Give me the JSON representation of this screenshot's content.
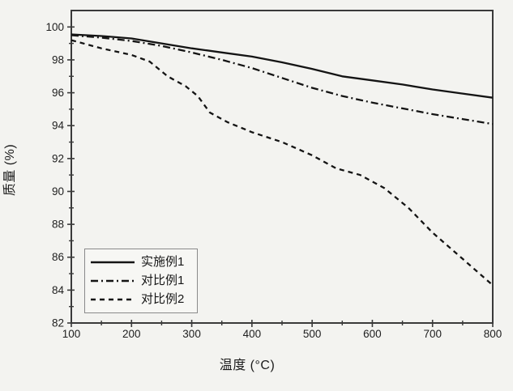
{
  "figure": {
    "background": "#f3f3f0",
    "line_color": "#141414",
    "frame_color": "#3a3a3a",
    "tick_label_color": "#1e1e1e"
  },
  "chart_data": {
    "type": "line",
    "title": "",
    "xlabel": "温度 (°C)",
    "ylabel": "质量 (%)",
    "xlim": [
      100,
      800
    ],
    "ylim": [
      82,
      101
    ],
    "x_ticks": [
      100,
      200,
      300,
      400,
      500,
      600,
      700,
      800
    ],
    "y_ticks": [
      82,
      84,
      86,
      88,
      90,
      92,
      94,
      96,
      98,
      100
    ],
    "grid": false,
    "legend_position": "lower-left",
    "series": [
      {
        "name": "实施例1",
        "line_style": "solid",
        "points": [
          [
            100,
            99.55
          ],
          [
            150,
            99.45
          ],
          [
            200,
            99.3
          ],
          [
            250,
            99.0
          ],
          [
            300,
            98.7
          ],
          [
            350,
            98.45
          ],
          [
            400,
            98.2
          ],
          [
            450,
            97.85
          ],
          [
            500,
            97.45
          ],
          [
            550,
            97.0
          ],
          [
            600,
            96.75
          ],
          [
            650,
            96.5
          ],
          [
            700,
            96.2
          ],
          [
            750,
            95.95
          ],
          [
            800,
            95.7
          ]
        ]
      },
      {
        "name": "对比例1",
        "line_style": "dash-dot",
        "points": [
          [
            100,
            99.5
          ],
          [
            150,
            99.35
          ],
          [
            200,
            99.15
          ],
          [
            250,
            98.85
          ],
          [
            300,
            98.45
          ],
          [
            350,
            98.0
          ],
          [
            400,
            97.5
          ],
          [
            450,
            96.9
          ],
          [
            500,
            96.3
          ],
          [
            550,
            95.8
          ],
          [
            600,
            95.4
          ],
          [
            650,
            95.05
          ],
          [
            700,
            94.7
          ],
          [
            750,
            94.4
          ],
          [
            800,
            94.1
          ]
        ]
      },
      {
        "name": "对比例2",
        "line_style": "dashed",
        "points": [
          [
            100,
            99.2
          ],
          [
            150,
            98.7
          ],
          [
            200,
            98.3
          ],
          [
            230,
            97.9
          ],
          [
            260,
            97.0
          ],
          [
            290,
            96.4
          ],
          [
            310,
            95.8
          ],
          [
            330,
            94.8
          ],
          [
            360,
            94.2
          ],
          [
            400,
            93.6
          ],
          [
            450,
            93.0
          ],
          [
            500,
            92.2
          ],
          [
            540,
            91.4
          ],
          [
            580,
            91.0
          ],
          [
            620,
            90.2
          ],
          [
            660,
            89.0
          ],
          [
            700,
            87.5
          ],
          [
            750,
            85.9
          ],
          [
            800,
            84.3
          ]
        ]
      }
    ]
  }
}
